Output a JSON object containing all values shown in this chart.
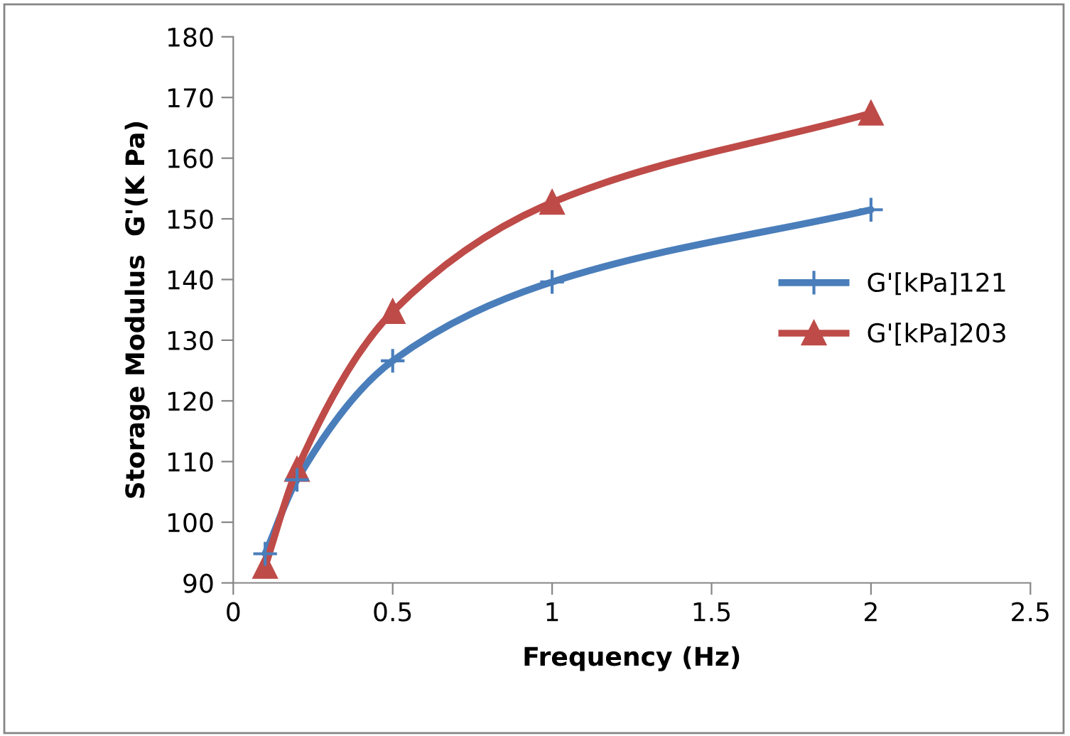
{
  "chart_data": {
    "type": "line",
    "xlabel": "Frequency (Hz)",
    "ylabel": "Storage Modulus  G'(K Pa)",
    "x": [
      0.1,
      0.2,
      0.5,
      1,
      2
    ],
    "series": [
      {
        "name": "G'[kPa]121",
        "color": "#4a7ebb",
        "marker": "cross",
        "values": [
          94.8,
          107,
          126.6,
          139.6,
          151.5
        ]
      },
      {
        "name": "G'[kPa]203",
        "color": "#be4b48",
        "marker": "triangle",
        "values": [
          92.7,
          108.7,
          134.7,
          152.7,
          167.4
        ]
      }
    ],
    "xlim": [
      0,
      2.5
    ],
    "xticks": [
      0,
      0.5,
      1,
      1.5,
      2,
      2.5
    ],
    "ylim": [
      90,
      180
    ],
    "yticks": [
      90,
      100,
      110,
      120,
      130,
      140,
      150,
      160,
      170,
      180
    ],
    "grid": false,
    "legend": "right",
    "line_style": "solid"
  }
}
